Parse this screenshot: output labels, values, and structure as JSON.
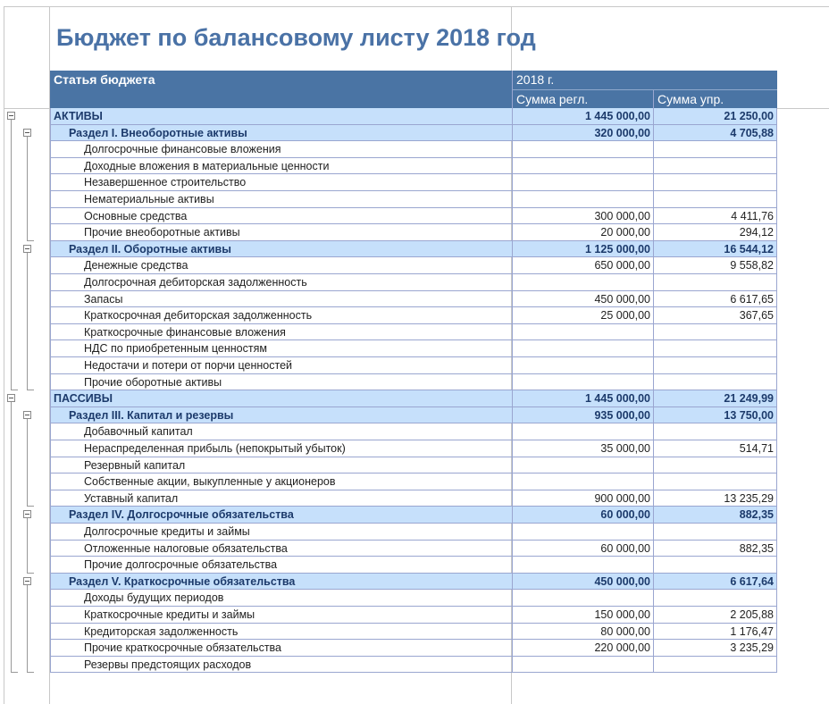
{
  "title": "Бюджет по балансовому листу 2018 год",
  "header": {
    "article": "Статья бюджета",
    "period": "2018 г.",
    "col_regl": "Сумма регл.",
    "col_upr": "Сумма упр."
  },
  "rows": [
    {
      "level": 1,
      "label": "АКТИВЫ",
      "regl": "1 445 000,00",
      "upr": "21 250,00"
    },
    {
      "level": 2,
      "label": "Раздел I. Внеоборотные активы",
      "regl": "320 000,00",
      "upr": "4 705,88"
    },
    {
      "level": 3,
      "label": "Долгосрочные финансовые вложения",
      "regl": "",
      "upr": ""
    },
    {
      "level": 3,
      "label": "Доходные вложения в материальные ценности",
      "regl": "",
      "upr": ""
    },
    {
      "level": 3,
      "label": "Незавершенное строительство",
      "regl": "",
      "upr": ""
    },
    {
      "level": 3,
      "label": "Нематериальные активы",
      "regl": "",
      "upr": ""
    },
    {
      "level": 3,
      "label": "Основные средства",
      "regl": "300 000,00",
      "upr": "4 411,76"
    },
    {
      "level": 3,
      "label": "Прочие внеоборотные активы",
      "regl": "20 000,00",
      "upr": "294,12"
    },
    {
      "level": 2,
      "label": "Раздел II. Оборотные активы",
      "regl": "1 125 000,00",
      "upr": "16 544,12"
    },
    {
      "level": 3,
      "label": "Денежные средства",
      "regl": "650 000,00",
      "upr": "9 558,82"
    },
    {
      "level": 3,
      "label": "Долгосрочная дебиторская задолженность",
      "regl": "",
      "upr": ""
    },
    {
      "level": 3,
      "label": "Запасы",
      "regl": "450 000,00",
      "upr": "6 617,65"
    },
    {
      "level": 3,
      "label": "Краткосрочная дебиторская задолженность",
      "regl": "25 000,00",
      "upr": "367,65"
    },
    {
      "level": 3,
      "label": "Краткосрочные финансовые вложения",
      "regl": "",
      "upr": ""
    },
    {
      "level": 3,
      "label": "НДС по приобретенным ценностям",
      "regl": "",
      "upr": ""
    },
    {
      "level": 3,
      "label": "Недостачи и потери от порчи ценностей",
      "regl": "",
      "upr": ""
    },
    {
      "level": 3,
      "label": "Прочие оборотные активы",
      "regl": "",
      "upr": ""
    },
    {
      "level": 1,
      "label": "ПАССИВЫ",
      "regl": "1 445 000,00",
      "upr": "21 249,99"
    },
    {
      "level": 2,
      "label": "Раздел III. Капитал и резервы",
      "regl": "935 000,00",
      "upr": "13 750,00"
    },
    {
      "level": 3,
      "label": "Добавочный капитал",
      "regl": "",
      "upr": ""
    },
    {
      "level": 3,
      "label": "Нераспределенная прибыль (непокрытый убыток)",
      "regl": "35 000,00",
      "upr": "514,71"
    },
    {
      "level": 3,
      "label": "Резервный капитал",
      "regl": "",
      "upr": ""
    },
    {
      "level": 3,
      "label": "Собственные акции, выкупленные у акционеров",
      "regl": "",
      "upr": ""
    },
    {
      "level": 3,
      "label": "Уставный капитал",
      "regl": "900 000,00",
      "upr": "13 235,29"
    },
    {
      "level": 2,
      "label": "Раздел IV.  Долгосрочные обязательства",
      "regl": "60 000,00",
      "upr": "882,35"
    },
    {
      "level": 3,
      "label": "Долгосрочные кредиты и займы",
      "regl": "",
      "upr": ""
    },
    {
      "level": 3,
      "label": "Отложенные налоговые обязательства",
      "regl": "60 000,00",
      "upr": "882,35"
    },
    {
      "level": 3,
      "label": "Прочие долгосрочные обязательства",
      "regl": "",
      "upr": ""
    },
    {
      "level": 2,
      "label": "Раздел V. Краткосрочные обязательства",
      "regl": "450 000,00",
      "upr": "6 617,64"
    },
    {
      "level": 3,
      "label": "Доходы будущих периодов",
      "regl": "",
      "upr": ""
    },
    {
      "level": 3,
      "label": "Краткосрочные кредиты и займы",
      "regl": "150 000,00",
      "upr": "2 205,88"
    },
    {
      "level": 3,
      "label": "Кредиторская задолженность",
      "regl": "80 000,00",
      "upr": "1 176,47"
    },
    {
      "level": 3,
      "label": "Прочие краткосрочные обязательства",
      "regl": "220 000,00",
      "upr": "3 235,29"
    },
    {
      "level": 3,
      "label": "Резервы предстоящих расходов",
      "regl": "",
      "upr": ""
    }
  ]
}
